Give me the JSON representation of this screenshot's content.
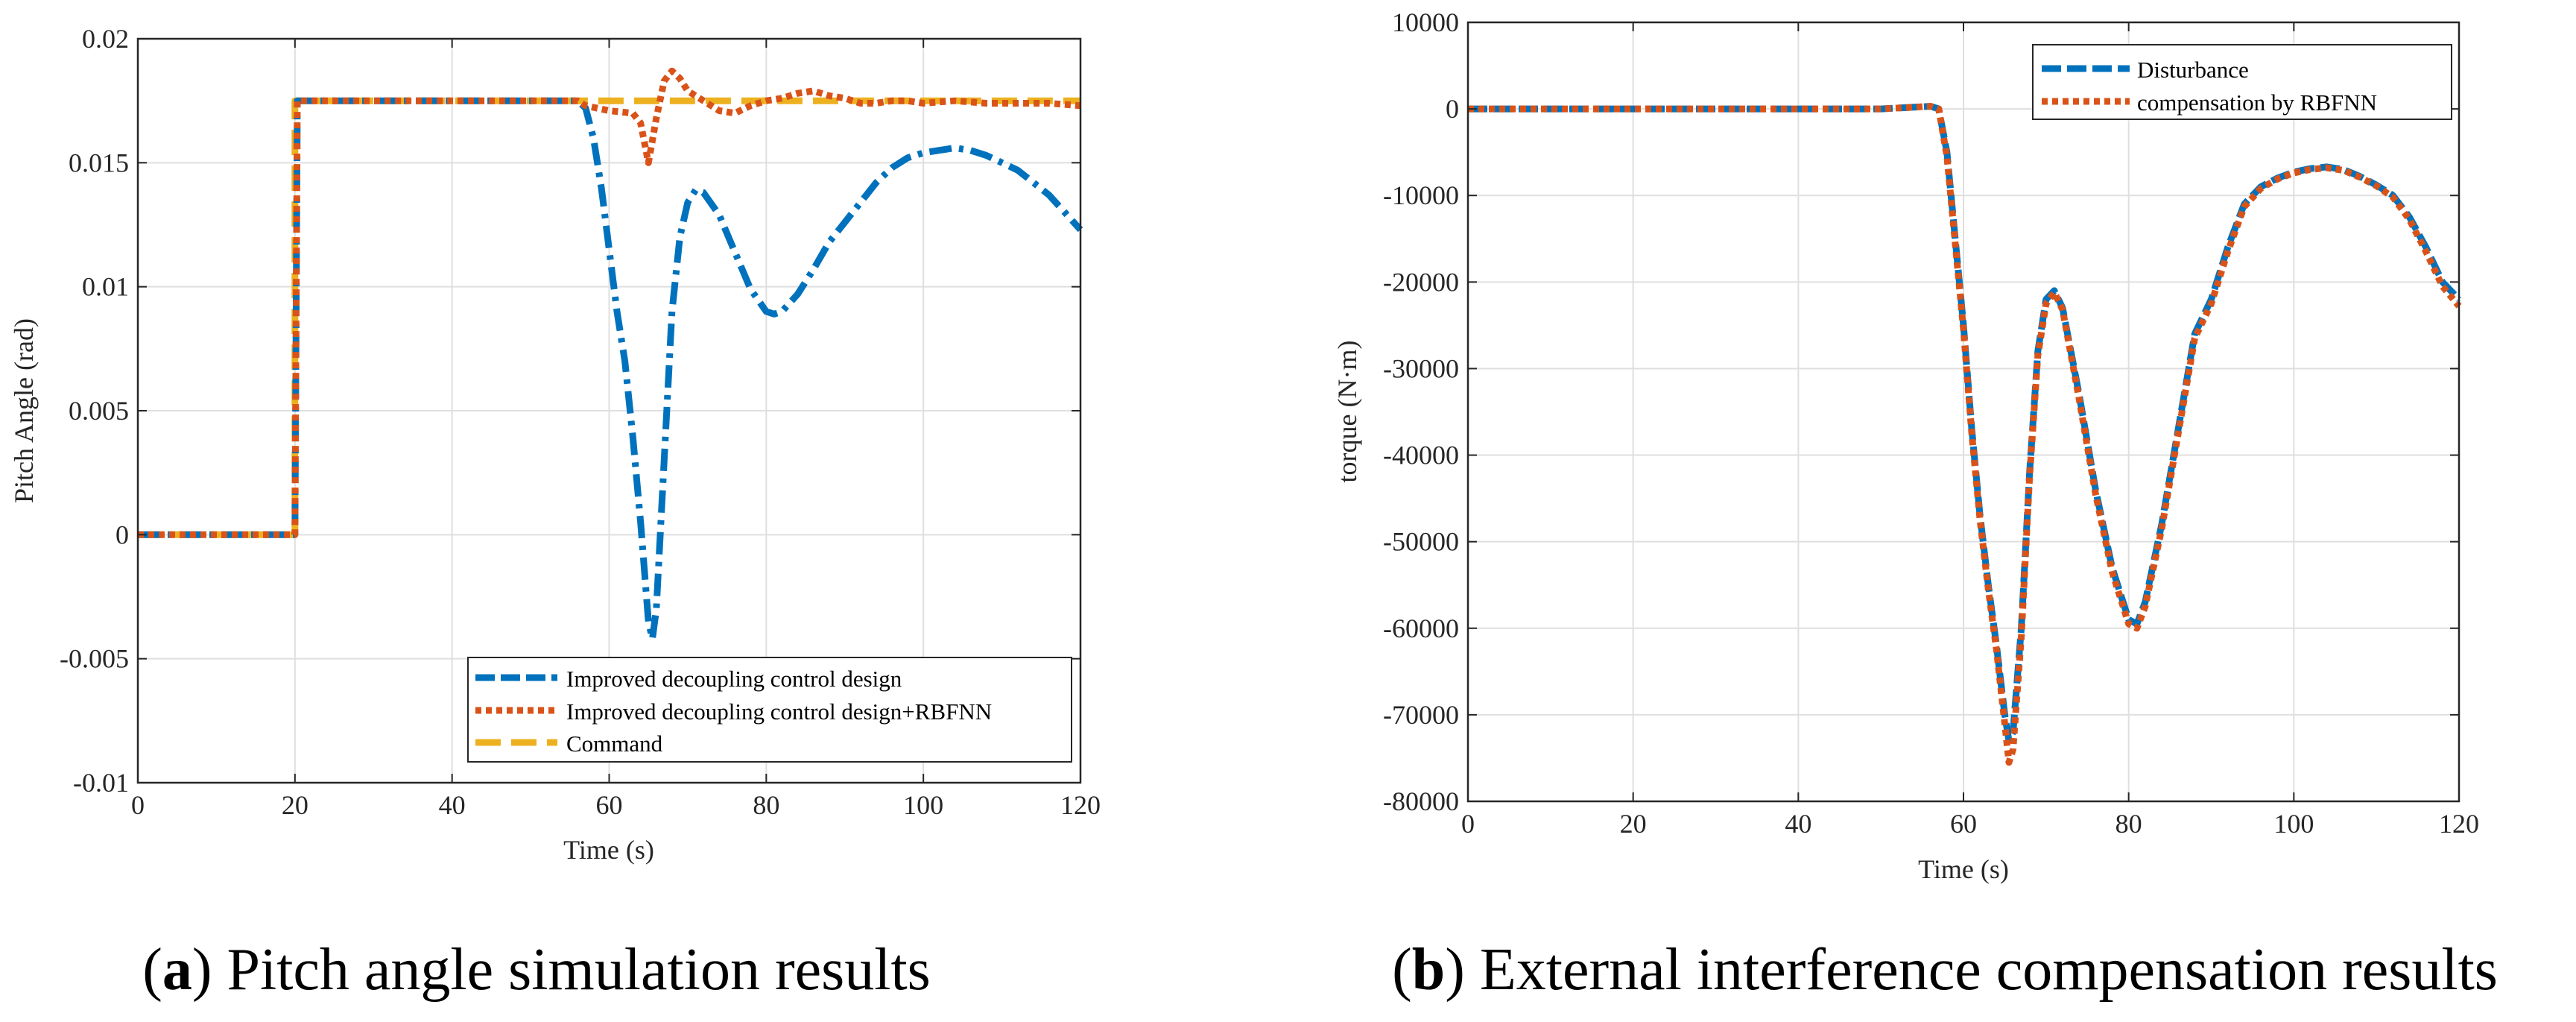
{
  "chart_data": [
    {
      "type": "line",
      "panel_caption": {
        "prefix": "(",
        "letter": "a",
        "text": ") Pitch angle simulation results"
      },
      "xlabel": "Time (s)",
      "ylabel": "Pitch Angle (rad)",
      "xlim": [
        0,
        120
      ],
      "ylim": [
        -0.01,
        0.02
      ],
      "grid": true,
      "legend_position": "bottom-right",
      "xticks": [
        0,
        20,
        40,
        60,
        80,
        100,
        120
      ],
      "xtick_labels": [
        "0",
        "20",
        "40",
        "60",
        "80",
        "100",
        "120"
      ],
      "yticks": [
        -0.01,
        -0.005,
        0,
        0.005,
        0.01,
        0.015,
        0.02
      ],
      "ytick_labels": [
        "-0.01",
        "-0.005",
        "0",
        "0.005",
        "0.01",
        "0.015",
        "0.02"
      ],
      "series": [
        {
          "name": "Improved decoupling control design",
          "color": "#0072BD",
          "style": "dashdot",
          "points": [
            [
              0,
              0
            ],
            [
              20,
              0
            ],
            [
              20.3,
              0.0175
            ],
            [
              56,
              0.0175
            ],
            [
              57,
              0.0172
            ],
            [
              58,
              0.016
            ],
            [
              59,
              0.014
            ],
            [
              60,
              0.0115
            ],
            [
              61,
              0.009
            ],
            [
              62,
              0.007
            ],
            [
              63,
              0.004
            ],
            [
              64,
              0.0005
            ],
            [
              65,
              -0.0035
            ],
            [
              65.5,
              -0.0042
            ],
            [
              66,
              -0.003
            ],
            [
              67,
              0.003
            ],
            [
              68,
              0.009
            ],
            [
              69,
              0.012
            ],
            [
              70,
              0.0134
            ],
            [
              71,
              0.0139
            ],
            [
              72,
              0.0138
            ],
            [
              74,
              0.0129
            ],
            [
              76,
              0.0114
            ],
            [
              78,
              0.0099
            ],
            [
              80,
              0.009
            ],
            [
              81,
              0.0089
            ],
            [
              82,
              0.009
            ],
            [
              84,
              0.0097
            ],
            [
              86,
              0.0107
            ],
            [
              88,
              0.0118
            ],
            [
              90,
              0.0126
            ],
            [
              92,
              0.0134
            ],
            [
              94,
              0.0142
            ],
            [
              96,
              0.0148
            ],
            [
              98,
              0.0152
            ],
            [
              100,
              0.0154
            ],
            [
              102,
              0.0155
            ],
            [
              104,
              0.0156
            ],
            [
              106,
              0.0155
            ],
            [
              108,
              0.0153
            ],
            [
              110,
              0.015
            ],
            [
              112,
              0.0147
            ],
            [
              114,
              0.0142
            ],
            [
              116,
              0.0137
            ],
            [
              118,
              0.013
            ],
            [
              120,
              0.0123
            ]
          ]
        },
        {
          "name": "Improved decoupling control design+RBFNN",
          "color": "#D95319",
          "style": "dotted",
          "points": [
            [
              0,
              0
            ],
            [
              20,
              0
            ],
            [
              20.3,
              0.0175
            ],
            [
              56,
              0.0175
            ],
            [
              57,
              0.0173
            ],
            [
              60,
              0.0171
            ],
            [
              63,
              0.017
            ],
            [
              64,
              0.0166
            ],
            [
              65,
              0.015
            ],
            [
              66,
              0.0168
            ],
            [
              67,
              0.0183
            ],
            [
              68,
              0.0187
            ],
            [
              69,
              0.0184
            ],
            [
              70,
              0.0179
            ],
            [
              72,
              0.0175
            ],
            [
              74,
              0.0171
            ],
            [
              76,
              0.017
            ],
            [
              78,
              0.0173
            ],
            [
              80,
              0.0175
            ],
            [
              82,
              0.0176
            ],
            [
              84,
              0.0178
            ],
            [
              86,
              0.0179
            ],
            [
              88,
              0.0177
            ],
            [
              90,
              0.0176
            ],
            [
              92,
              0.0174
            ],
            [
              94,
              0.0174
            ],
            [
              96,
              0.0175
            ],
            [
              98,
              0.0175
            ],
            [
              100,
              0.0174
            ],
            [
              104,
              0.0175
            ],
            [
              108,
              0.0174
            ],
            [
              112,
              0.0174
            ],
            [
              116,
              0.0174
            ],
            [
              120,
              0.0173
            ]
          ]
        },
        {
          "name": "Command",
          "color": "#EDB120",
          "style": "dashed",
          "points": [
            [
              0,
              0
            ],
            [
              20,
              0
            ],
            [
              20,
              0.0175
            ],
            [
              120,
              0.0175
            ]
          ]
        }
      ]
    },
    {
      "type": "line",
      "panel_caption": {
        "prefix": "(",
        "letter": "b",
        "text": ") External interference compensation results"
      },
      "xlabel": "Time (s)",
      "ylabel": "torque (N·m)",
      "xlim": [
        0,
        120
      ],
      "ylim": [
        -80000,
        10000
      ],
      "grid": true,
      "legend_position": "top-right",
      "xticks": [
        0,
        20,
        40,
        60,
        80,
        100,
        120
      ],
      "xtick_labels": [
        "0",
        "20",
        "40",
        "60",
        "80",
        "100",
        "120"
      ],
      "yticks": [
        -80000,
        -70000,
        -60000,
        -50000,
        -40000,
        -30000,
        -20000,
        -10000,
        0,
        10000
      ],
      "ytick_labels": [
        "-80000",
        "-70000",
        "-60000",
        "-50000",
        "-40000",
        "-30000",
        "-20000",
        "-10000",
        "0",
        "10000"
      ],
      "series": [
        {
          "name": "Disturbance",
          "color": "#0072BD",
          "style": "dashed",
          "points": [
            [
              0,
              0
            ],
            [
              50,
              0
            ],
            [
              56,
              300
            ],
            [
              57,
              0
            ],
            [
              58,
              -5000
            ],
            [
              59,
              -15000
            ],
            [
              60,
              -25000
            ],
            [
              61,
              -37000
            ],
            [
              62,
              -47000
            ],
            [
              63,
              -55000
            ],
            [
              64,
              -62000
            ],
            [
              65,
              -70000
            ],
            [
              65.5,
              -73000
            ],
            [
              66,
              -72000
            ],
            [
              67,
              -60000
            ],
            [
              68,
              -42000
            ],
            [
              69,
              -28000
            ],
            [
              70,
              -22000
            ],
            [
              71,
              -21000
            ],
            [
              72,
              -23000
            ],
            [
              74,
              -33000
            ],
            [
              76,
              -44000
            ],
            [
              78,
              -53000
            ],
            [
              80,
              -59000
            ],
            [
              81,
              -59500
            ],
            [
              82,
              -57000
            ],
            [
              84,
              -48000
            ],
            [
              86,
              -37000
            ],
            [
              88,
              -26000
            ],
            [
              90,
              -22000
            ],
            [
              92,
              -16000
            ],
            [
              94,
              -11000
            ],
            [
              96,
              -9000
            ],
            [
              98,
              -8000
            ],
            [
              100,
              -7300
            ],
            [
              102,
              -6900
            ],
            [
              104,
              -6700
            ],
            [
              106,
              -7000
            ],
            [
              108,
              -7800
            ],
            [
              110,
              -8800
            ],
            [
              112,
              -10000
            ],
            [
              114,
              -12500
            ],
            [
              116,
              -16000
            ],
            [
              118,
              -20000
            ],
            [
              120,
              -22000
            ]
          ]
        },
        {
          "name": "compensation by RBFNN",
          "color": "#D95319",
          "style": "dotted",
          "points": [
            [
              0,
              0
            ],
            [
              50,
              0
            ],
            [
              56,
              300
            ],
            [
              57,
              0
            ],
            [
              58,
              -5500
            ],
            [
              59,
              -15500
            ],
            [
              60,
              -25500
            ],
            [
              61,
              -37500
            ],
            [
              62,
              -47500
            ],
            [
              63,
              -55500
            ],
            [
              64,
              -62500
            ],
            [
              65,
              -71000
            ],
            [
              65.5,
              -75500
            ],
            [
              66,
              -74000
            ],
            [
              67,
              -61000
            ],
            [
              68,
              -42500
            ],
            [
              69,
              -28500
            ],
            [
              70,
              -22500
            ],
            [
              71,
              -21200
            ],
            [
              72,
              -23200
            ],
            [
              74,
              -33500
            ],
            [
              76,
              -44500
            ],
            [
              78,
              -53500
            ],
            [
              80,
              -59500
            ],
            [
              81,
              -60000
            ],
            [
              82,
              -57500
            ],
            [
              84,
              -48500
            ],
            [
              86,
              -37500
            ],
            [
              88,
              -26500
            ],
            [
              90,
              -22500
            ],
            [
              92,
              -16500
            ],
            [
              94,
              -11300
            ],
            [
              96,
              -9200
            ],
            [
              98,
              -8100
            ],
            [
              100,
              -7400
            ],
            [
              102,
              -7000
            ],
            [
              104,
              -6800
            ],
            [
              106,
              -7100
            ],
            [
              108,
              -7900
            ],
            [
              110,
              -8900
            ],
            [
              112,
              -10200
            ],
            [
              114,
              -12800
            ],
            [
              116,
              -16500
            ],
            [
              118,
              -20500
            ],
            [
              120,
              -22800
            ]
          ]
        }
      ]
    }
  ]
}
